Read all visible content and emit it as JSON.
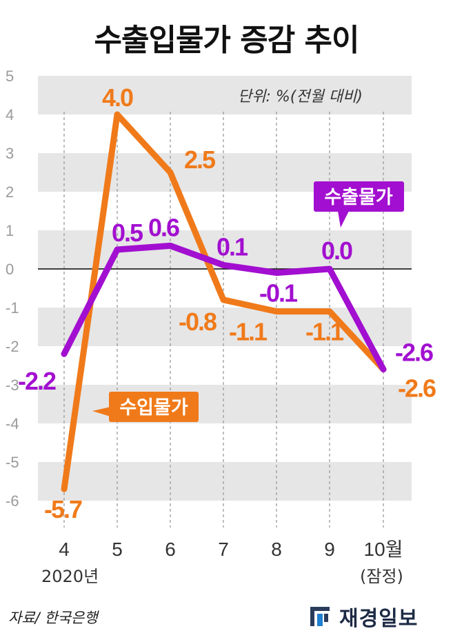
{
  "title": "수출입물가 증감 추이",
  "unit_label": "단위: %(전월 대비)",
  "source": "자료/ 한국은행",
  "brand": "재경일보",
  "x_year_label": "2020년",
  "x_last_note": "(잠정)",
  "colors": {
    "import": "#f07a1a",
    "export": "#a20fd0",
    "band": "#e6e6e6",
    "zero_line": "#000000"
  },
  "chart_data": {
    "type": "line",
    "categories": [
      "4",
      "5",
      "6",
      "7",
      "8",
      "9",
      "10월"
    ],
    "ylim": [
      -6.6,
      5
    ],
    "y_ticks": [
      5,
      4,
      3,
      2,
      1,
      0,
      -1,
      -2,
      -3,
      -4,
      -5,
      -6
    ],
    "y_tick_labels": [
      "5",
      "4",
      "3",
      "2",
      "1",
      "0",
      "-1",
      "-2",
      "-3",
      "-4",
      "-5",
      "-6"
    ],
    "series": [
      {
        "name": "수입물가",
        "values": [
          -5.7,
          4.0,
          2.5,
          -0.8,
          -1.1,
          -1.1,
          -2.6
        ],
        "labels": [
          "-5.7",
          "4.0",
          "2.5",
          "-0.8",
          "-1.1",
          "-1.1",
          "-2.6"
        ]
      },
      {
        "name": "수출물가",
        "values": [
          -2.2,
          0.5,
          0.6,
          0.1,
          -0.1,
          0.0,
          -2.6
        ],
        "labels": [
          "-2.2",
          "0.5",
          "0.6",
          "0.1",
          "-0.1",
          "0.0",
          "-2.6"
        ]
      }
    ]
  }
}
